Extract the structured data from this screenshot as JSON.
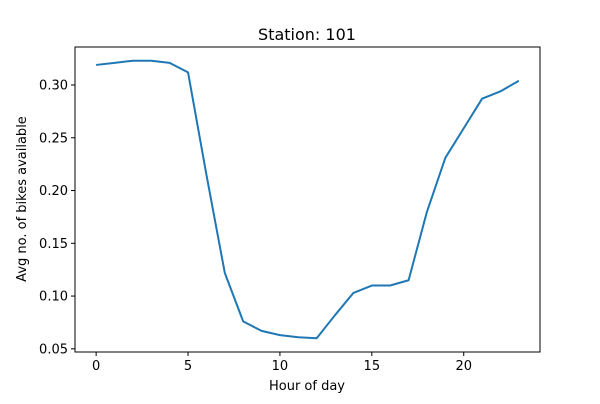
{
  "chart_data": {
    "type": "line",
    "title": "Station: 101",
    "xlabel": "Hour of day",
    "ylabel": "Avg no. of bikes available",
    "xlim": [
      -1.15,
      24.15
    ],
    "ylim": [
      0.047,
      0.336
    ],
    "xticks": [
      0,
      5,
      10,
      15,
      20
    ],
    "xtick_labels": [
      "0",
      "5",
      "10",
      "15",
      "20"
    ],
    "yticks": [
      0.05,
      0.1,
      0.15,
      0.2,
      0.25,
      0.3
    ],
    "ytick_labels": [
      "0.05",
      "0.10",
      "0.15",
      "0.20",
      "0.25",
      "0.30"
    ],
    "grid": false,
    "series": [
      {
        "color": "#1f77b4",
        "x": [
          0,
          1,
          2,
          3,
          4,
          5,
          6,
          7,
          8,
          9,
          10,
          11,
          12,
          13,
          14,
          15,
          16,
          17,
          18,
          19,
          20,
          21,
          22,
          23
        ],
        "y": [
          0.319,
          0.321,
          0.323,
          0.323,
          0.321,
          0.312,
          0.215,
          0.122,
          0.076,
          0.067,
          0.063,
          0.061,
          0.06,
          0.082,
          0.103,
          0.11,
          0.11,
          0.115,
          0.18,
          0.231,
          0.259,
          0.287,
          0.294,
          0.304
        ]
      }
    ]
  }
}
